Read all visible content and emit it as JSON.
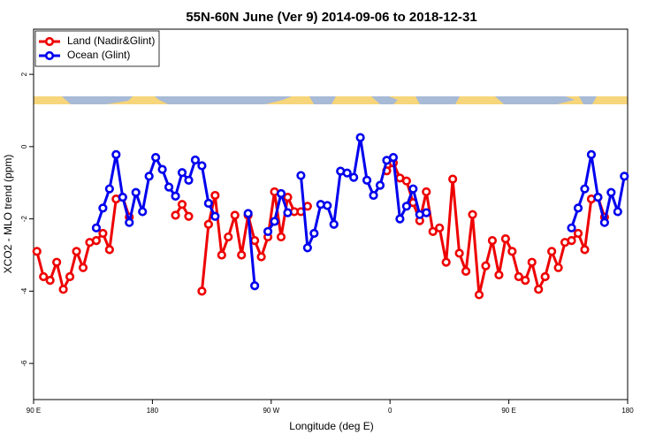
{
  "chart_data": {
    "type": "line",
    "title": "55N-60N June (Ver 9)   2014-09-06 to 2018-12-31",
    "x_label": "Longitude (deg E)",
    "y_label": "XCO2 - MLO trend (ppm)",
    "x": [
      92.5,
      97.5,
      102.5,
      107.5,
      112.5,
      117.5,
      122.5,
      127.5,
      132.5,
      137.5,
      142.5,
      147.5,
      152.5,
      157.5,
      162.5,
      167.5,
      172.5,
      177.5,
      182.5,
      187.5,
      192.5,
      197.5,
      202.5,
      207.5,
      212.5,
      217.5,
      222.5,
      227.5,
      232.5,
      237.5,
      242.5,
      247.5,
      252.5,
      257.5,
      262.5,
      267.5,
      272.5,
      277.5,
      282.5,
      287.5,
      292.5,
      297.5,
      302.5,
      307.5,
      312.5,
      317.5,
      322.5,
      327.5,
      332.5,
      337.5,
      342.5,
      347.5,
      352.5,
      357.5,
      362.5,
      367.5,
      372.5,
      377.5,
      382.5,
      387.5,
      392.5,
      397.5,
      402.5,
      407.5,
      412.5,
      417.5,
      422.5,
      427.5,
      432.5,
      437.5,
      442.5,
      447.5,
      452.5,
      457.5,
      462.5,
      467.5,
      472.5,
      477.5,
      482.5,
      487.5,
      492.5,
      497.5,
      502.5,
      507.5,
      512.5,
      517.5,
      522.5,
      527.5,
      532.5,
      537.5
    ],
    "series": [
      {
        "name": "Land (Nadir&Glint)",
        "color": "#ee0000",
        "values": [
          -2.9,
          -3.6,
          -3.7,
          -3.2,
          -3.95,
          -3.6,
          -2.9,
          -3.35,
          -2.65,
          -2.6,
          -2.4,
          -2.85,
          -1.45,
          -1.4,
          -1.95,
          null,
          null,
          null,
          null,
          null,
          null,
          -1.9,
          -1.6,
          -1.93,
          null,
          -4.0,
          -2.15,
          -1.35,
          -3.0,
          -2.5,
          -1.9,
          -3.0,
          -1.9,
          -2.6,
          -3.05,
          -2.5,
          -1.25,
          -2.5,
          -1.4,
          -1.8,
          -1.8,
          -1.65,
          null,
          null,
          null,
          null,
          null,
          null,
          null,
          null,
          null,
          null,
          null,
          -0.67,
          -0.45,
          -0.87,
          -0.95,
          -1.55,
          -2.05,
          -1.25,
          -2.35,
          -2.25,
          -3.2,
          -0.9,
          -2.95,
          -3.45,
          -1.88,
          -4.1,
          -3.3,
          -2.6,
          -3.55,
          -2.55,
          -2.9,
          -3.6,
          -3.7,
          -3.2,
          -3.95,
          -3.6,
          -2.9,
          -3.35,
          -2.65,
          -2.6,
          -2.4,
          -2.85,
          -1.45,
          -1.4,
          -1.95,
          null,
          null,
          null
        ]
      },
      {
        "name": "Ocean (Glint)",
        "color": "#0000ee",
        "values": [
          null,
          null,
          null,
          null,
          null,
          null,
          null,
          null,
          null,
          -2.25,
          -1.7,
          -1.17,
          -0.22,
          -1.4,
          -2.1,
          -1.27,
          -1.8,
          -0.82,
          -0.3,
          -0.63,
          -1.12,
          -1.37,
          -0.72,
          -0.93,
          -0.37,
          -0.53,
          -1.57,
          -1.93,
          null,
          null,
          null,
          null,
          -1.85,
          -3.85,
          null,
          -2.35,
          -2.07,
          -1.3,
          -1.83,
          null,
          -0.8,
          -2.8,
          -2.4,
          -1.6,
          -1.63,
          -2.15,
          -0.68,
          -0.73,
          -0.85,
          0.25,
          -0.93,
          -1.35,
          -1.07,
          -0.38,
          -0.3,
          -2.0,
          -1.65,
          -1.17,
          -1.88,
          -1.83,
          null,
          null,
          null,
          null,
          null,
          null,
          null,
          null,
          null,
          null,
          null,
          null,
          null,
          null,
          null,
          null,
          null,
          null,
          null,
          null,
          null,
          -2.25,
          -1.7,
          -1.17,
          -0.22,
          -1.4,
          -2.1,
          -1.27,
          -1.8,
          -0.82
        ]
      }
    ],
    "xlim": [
      90,
      540
    ],
    "xticks": [
      {
        "value": 90,
        "label": "90 E"
      },
      180,
      {
        "value": 270,
        "label": "90 W"
      },
      {
        "value": 360,
        "label": "0"
      },
      {
        "value": 450,
        "label": "90 E"
      },
      {
        "value": 540,
        "label": "180"
      }
    ],
    "ylim": [
      -7,
      3.25
    ],
    "yticks": [
      -6,
      -4,
      -2,
      0,
      2
    ],
    "legend": "top-left"
  }
}
